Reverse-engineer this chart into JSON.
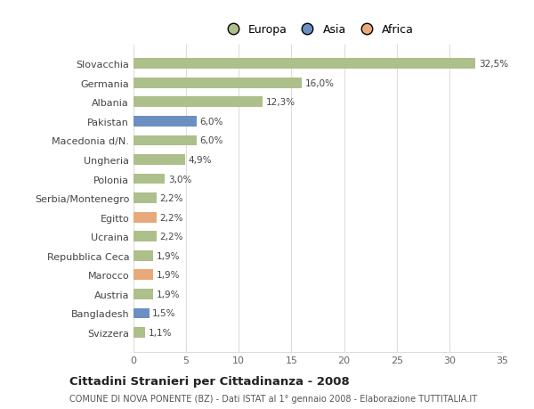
{
  "categories": [
    "Slovacchia",
    "Germania",
    "Albania",
    "Pakistan",
    "Macedonia d/N.",
    "Ungheria",
    "Polonia",
    "Serbia/Montenegro",
    "Egitto",
    "Ucraina",
    "Repubblica Ceca",
    "Marocco",
    "Austria",
    "Bangladesh",
    "Svizzera"
  ],
  "values": [
    32.5,
    16.0,
    12.3,
    6.0,
    6.0,
    4.9,
    3.0,
    2.2,
    2.2,
    2.2,
    1.9,
    1.9,
    1.9,
    1.5,
    1.1
  ],
  "labels": [
    "32,5%",
    "16,0%",
    "12,3%",
    "6,0%",
    "6,0%",
    "4,9%",
    "3,0%",
    "2,2%",
    "2,2%",
    "2,2%",
    "1,9%",
    "1,9%",
    "1,9%",
    "1,5%",
    "1,1%"
  ],
  "colors": [
    "#adbf8a",
    "#adbf8a",
    "#adbf8a",
    "#6b8fc2",
    "#adbf8a",
    "#adbf8a",
    "#adbf8a",
    "#adbf8a",
    "#e8a97a",
    "#adbf8a",
    "#adbf8a",
    "#e8a97a",
    "#adbf8a",
    "#6b8fc2",
    "#adbf8a"
  ],
  "legend_items": [
    {
      "label": "Europa",
      "color": "#adbf8a"
    },
    {
      "label": "Asia",
      "color": "#6b8fc2"
    },
    {
      "label": "Africa",
      "color": "#e8a97a"
    }
  ],
  "xlim": [
    0,
    35
  ],
  "xticks": [
    0,
    5,
    10,
    15,
    20,
    25,
    30,
    35
  ],
  "title": "Cittadini Stranieri per Cittadinanza - 2008",
  "subtitle": "COMUNE DI NOVA PONENTE (BZ) - Dati ISTAT al 1° gennaio 2008 - Elaborazione TUTTITALIA.IT",
  "background_color": "#ffffff",
  "plot_bg_color": "#ffffff",
  "grid_color": "#dddddd",
  "bar_height": 0.55
}
